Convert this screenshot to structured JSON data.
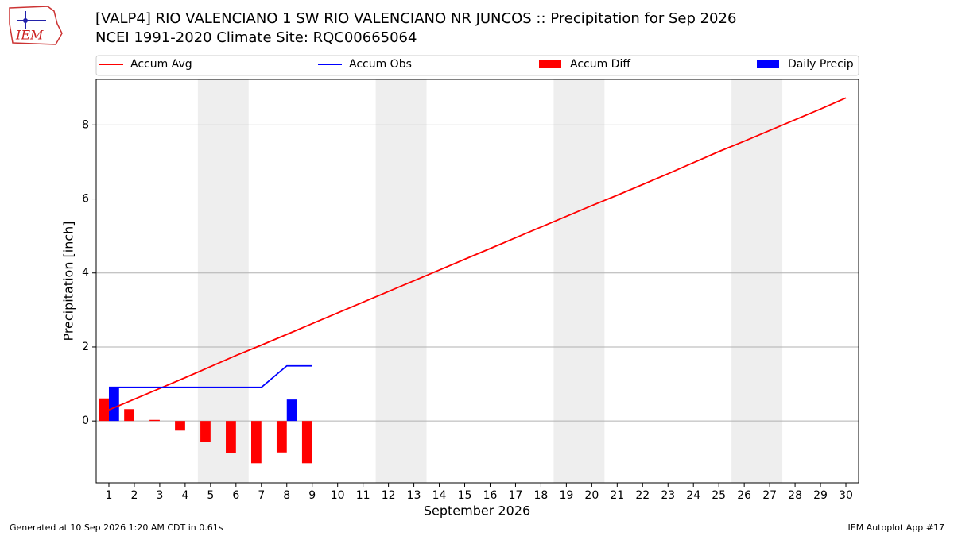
{
  "header": {
    "logo": "IEM"
  },
  "chart_data": {
    "type": "combo",
    "title": "[VALP4] RIO VALENCIANO 1 SW RIO VALENCIANO NR JUNCOS :: Precipitation for Sep 2026",
    "subtitle": "NCEI 1991-2020 Climate Site: RQC00665064",
    "x_label": "September 2026",
    "y_label": "Precipitation [inch]",
    "x": [
      1,
      2,
      3,
      4,
      5,
      6,
      7,
      8,
      9,
      10,
      11,
      12,
      13,
      14,
      15,
      16,
      17,
      18,
      19,
      20,
      21,
      22,
      23,
      24,
      25,
      26,
      27,
      28,
      29,
      30
    ],
    "xlim": [
      0.5,
      30.5
    ],
    "xticks": [
      1,
      2,
      3,
      4,
      5,
      6,
      7,
      8,
      9,
      10,
      11,
      12,
      13,
      14,
      15,
      16,
      17,
      18,
      19,
      20,
      21,
      22,
      23,
      24,
      25,
      26,
      27,
      28,
      29,
      30
    ],
    "ylim": [
      -1.67,
      9.23
    ],
    "yticks": [
      0,
      2,
      4,
      6,
      8
    ],
    "grid": true,
    "shaded_ranges": [
      [
        4.5,
        6.5
      ],
      [
        11.5,
        13.5
      ],
      [
        18.5,
        20.5
      ],
      [
        25.5,
        27.5
      ]
    ],
    "shade_color": "#eeeeee",
    "legend": "top",
    "series": [
      {
        "name": "Accum Avg",
        "kind": "line",
        "color": "#ff0000",
        "values": [
          0.3,
          0.59,
          0.88,
          1.17,
          1.47,
          1.77,
          2.05,
          2.34,
          2.63,
          2.92,
          3.21,
          3.5,
          3.79,
          4.08,
          4.37,
          4.66,
          4.95,
          5.24,
          5.53,
          5.82,
          6.1,
          6.39,
          6.68,
          6.98,
          7.28,
          7.56,
          7.85,
          8.14,
          8.43,
          8.73
        ]
      },
      {
        "name": "Accum Obs",
        "kind": "line",
        "color": "#0000ff",
        "values": [
          0.91,
          0.91,
          0.91,
          0.91,
          0.91,
          0.91,
          0.91,
          1.49,
          1.49,
          null,
          null,
          null,
          null,
          null,
          null,
          null,
          null,
          null,
          null,
          null,
          null,
          null,
          null,
          null,
          null,
          null,
          null,
          null,
          null,
          null
        ]
      },
      {
        "name": "Accum Diff",
        "kind": "bar",
        "side": "left",
        "color": "#ff0000",
        "values": [
          0.61,
          0.32,
          0.03,
          -0.26,
          -0.56,
          -0.86,
          -1.14,
          -0.85,
          -1.14,
          null,
          null,
          null,
          null,
          null,
          null,
          null,
          null,
          null,
          null,
          null,
          null,
          null,
          null,
          null,
          null,
          null,
          null,
          null,
          null,
          null
        ]
      },
      {
        "name": "Daily Precip",
        "kind": "bar",
        "side": "right",
        "color": "#0000ff",
        "values": [
          0.91,
          0,
          0,
          0,
          0,
          0,
          0,
          0.58,
          0,
          null,
          null,
          null,
          null,
          null,
          null,
          null,
          null,
          null,
          null,
          null,
          null,
          null,
          null,
          null,
          null,
          null,
          null,
          null,
          null,
          null
        ]
      }
    ]
  },
  "footer": {
    "left": "Generated at 10 Sep 2026 1:20 AM CDT in 0.61s",
    "right": "IEM Autoplot App #17"
  }
}
